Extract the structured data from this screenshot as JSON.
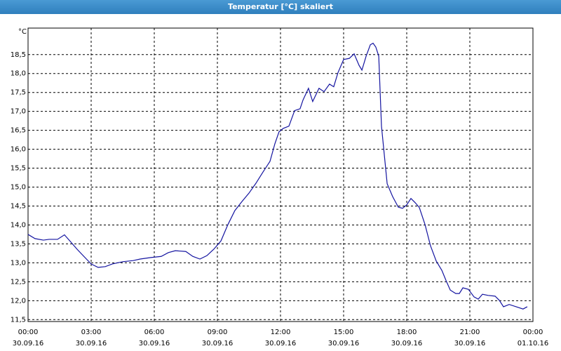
{
  "window_title": "Temperatur [°C] skaliert",
  "chart_data": {
    "type": "line",
    "y_label": "°C",
    "x": [
      0,
      0.33,
      0.73,
      1,
      1.4,
      1.73,
      2,
      2.33,
      2.67,
      3,
      3.33,
      3.67,
      4,
      4.5,
      5,
      5.33,
      5.83,
      6.33,
      6.67,
      7,
      7.5,
      7.83,
      8.17,
      8.5,
      8.83,
      9.17,
      9.5,
      9.83,
      10.17,
      10.5,
      10.83,
      11.17,
      11.5,
      11.73,
      11.93,
      12.13,
      12.4,
      12.67,
      12.93,
      13.07,
      13.33,
      13.53,
      13.83,
      14.07,
      14.33,
      14.53,
      14.73,
      15,
      15.27,
      15.5,
      15.73,
      15.87,
      16.07,
      16.27,
      16.4,
      16.53,
      16.67,
      16.8,
      17.07,
      17.33,
      17.6,
      17.8,
      18,
      18.2,
      18.4,
      18.6,
      18.87,
      19.13,
      19.4,
      19.67,
      19.87,
      20.07,
      20.33,
      20.5,
      20.67,
      20.93,
      21.2,
      21.4,
      21.6,
      21.87,
      22.2,
      22.4,
      22.6,
      22.87,
      23.2,
      23.53,
      23.73
    ],
    "series": [
      {
        "name": "Temperatur",
        "color": "#1414a0",
        "values": [
          13.75,
          13.64,
          13.6,
          13.62,
          13.62,
          13.74,
          13.57,
          13.36,
          13.16,
          12.97,
          12.88,
          12.9,
          12.97,
          13.03,
          13.06,
          13.1,
          13.14,
          13.17,
          13.27,
          13.32,
          13.3,
          13.17,
          13.1,
          13.19,
          13.36,
          13.58,
          14.01,
          14.38,
          14.62,
          14.84,
          15.1,
          15.4,
          15.68,
          16.14,
          16.46,
          16.55,
          16.61,
          17.02,
          17.07,
          17.3,
          17.61,
          17.26,
          17.61,
          17.52,
          17.72,
          17.65,
          18.02,
          18.37,
          18.4,
          18.52,
          18.22,
          18.09,
          18.46,
          18.76,
          18.8,
          18.7,
          18.46,
          16.61,
          15.09,
          14.75,
          14.47,
          14.44,
          14.53,
          14.7,
          14.59,
          14.46,
          14.01,
          13.45,
          13.05,
          12.8,
          12.53,
          12.28,
          12.19,
          12.19,
          12.34,
          12.3,
          12.1,
          12.04,
          12.17,
          12.14,
          12.12,
          12.01,
          11.84,
          11.9,
          11.84,
          11.78,
          11.84
        ]
      }
    ],
    "xlim": [
      0,
      24
    ],
    "xticks": [
      {
        "value": 0,
        "label": "00:00",
        "date": "30.09.16"
      },
      {
        "value": 3,
        "label": "03:00",
        "date": "30.09.16"
      },
      {
        "value": 6,
        "label": "06:00",
        "date": "30.09.16"
      },
      {
        "value": 9,
        "label": "09:00",
        "date": "30.09.16"
      },
      {
        "value": 12,
        "label": "12:00",
        "date": "30.09.16"
      },
      {
        "value": 15,
        "label": "15:00",
        "date": "30.09.16"
      },
      {
        "value": 18,
        "label": "18:00",
        "date": "30.09.16"
      },
      {
        "value": 21,
        "label": "21:00",
        "date": "30.09.16"
      },
      {
        "value": 24,
        "label": "00:00",
        "date": "01.10.16"
      }
    ],
    "ylim": [
      11.45,
      19.2
    ],
    "yticks": [
      {
        "value": 11.5,
        "label": "11,5"
      },
      {
        "value": 12,
        "label": "12,0"
      },
      {
        "value": 12.5,
        "label": "12,5"
      },
      {
        "value": 13,
        "label": "13,0"
      },
      {
        "value": 13.5,
        "label": "13,5"
      },
      {
        "value": 14,
        "label": "14,0"
      },
      {
        "value": 14.5,
        "label": "14,5"
      },
      {
        "value": 15,
        "label": "15,0"
      },
      {
        "value": 15.5,
        "label": "15,5"
      },
      {
        "value": 16,
        "label": "16,0"
      },
      {
        "value": 16.5,
        "label": "16,5"
      },
      {
        "value": 17,
        "label": "17,0"
      },
      {
        "value": 17.5,
        "label": "17,5"
      },
      {
        "value": 18,
        "label": "18,0"
      },
      {
        "value": 18.5,
        "label": "18,5"
      }
    ],
    "grid": true
  }
}
